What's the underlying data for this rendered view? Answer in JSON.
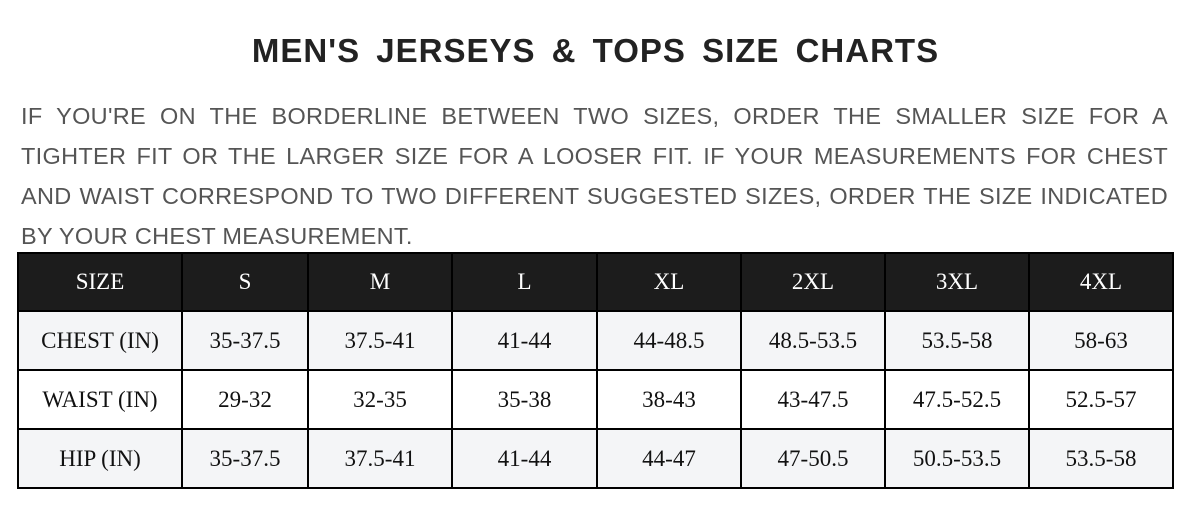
{
  "title": "MEN'S JERSEYS & TOPS SIZE CHARTS",
  "note": "IF YOU'RE ON THE BORDERLINE BETWEEN TWO SIZES, ORDER THE SMALLER SIZE FOR A TIGHTER FIT OR THE LARGER SIZE FOR A LOOSER FIT. IF YOUR MEASUREMENTS FOR CHEST AND WAIST CORRESPOND TO TWO DIFFERENT SUGGESTED SIZES, ORDER THE SIZE INDICATED BY YOUR CHEST MEASUREMENT.",
  "colors": {
    "header_bg": "#1c1c1c",
    "row_alt_bg": "#f4f5f7"
  },
  "table": {
    "headers": [
      "SIZE",
      "S",
      "M",
      "L",
      "XL",
      "2XL",
      "3XL",
      "4XL"
    ],
    "rows": [
      [
        "CHEST (IN)",
        "35-37.5",
        "37.5-41",
        "41-44",
        "44-48.5",
        "48.5-53.5",
        "53.5-58",
        "58-63"
      ],
      [
        "WAIST (IN)",
        "29-32",
        "32-35",
        "35-38",
        "38-43",
        "43-47.5",
        "47.5-52.5",
        "52.5-57"
      ],
      [
        "HIP (IN)",
        "35-37.5",
        "37.5-41",
        "41-44",
        "44-47",
        "47-50.5",
        "50.5-53.5",
        "53.5-58"
      ]
    ]
  }
}
